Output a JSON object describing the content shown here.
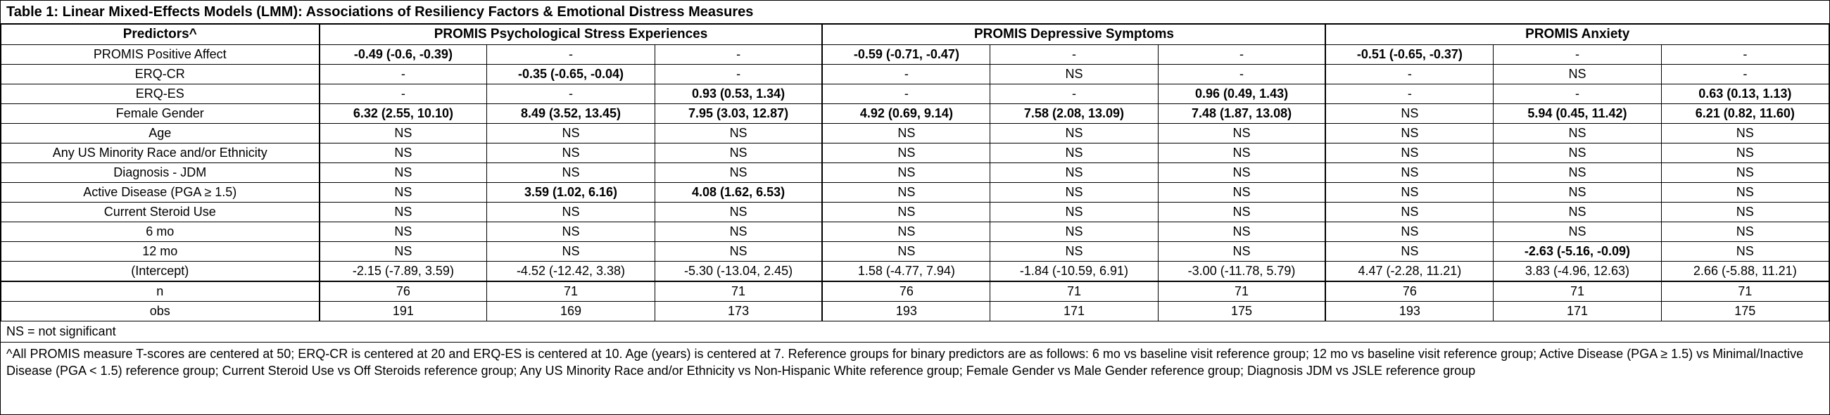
{
  "title": "Table 1: Linear Mixed-Effects Models (LMM): Associations of Resiliency Factors & Emotional Distress Measures",
  "table": {
    "predictor_header": "Predictors^",
    "groups": [
      "PROMIS Psychological Stress Experiences",
      "PROMIS Depressive Symptoms",
      "PROMIS Anxiety"
    ],
    "rows": [
      {
        "label": "PROMIS Positive Affect",
        "cells": [
          "-0.49 (-0.6, -0.39)",
          "-",
          "-",
          "-0.59 (-0.71, -0.47)",
          "-",
          "-",
          "-0.51 (-0.65, -0.37)",
          "-",
          "-"
        ],
        "bold": [
          0,
          3,
          6
        ]
      },
      {
        "label": "ERQ-CR",
        "cells": [
          "-",
          "-0.35 (-0.65, -0.04)",
          "-",
          "-",
          "NS",
          "-",
          "-",
          "NS",
          "-"
        ],
        "bold": [
          1
        ]
      },
      {
        "label": "ERQ-ES",
        "cells": [
          "-",
          "-",
          "0.93 (0.53, 1.34)",
          "-",
          "-",
          "0.96 (0.49, 1.43)",
          "-",
          "-",
          "0.63 (0.13, 1.13)"
        ],
        "bold": [
          2,
          5,
          8
        ]
      },
      {
        "label": "Female Gender",
        "cells": [
          "6.32 (2.55, 10.10)",
          "8.49 (3.52, 13.45)",
          "7.95 (3.03, 12.87)",
          "4.92 (0.69, 9.14)",
          "7.58 (2.08, 13.09)",
          "7.48 (1.87, 13.08)",
          "NS",
          "5.94 (0.45, 11.42)",
          "6.21 (0.82, 11.60)"
        ],
        "bold": [
          0,
          1,
          2,
          3,
          4,
          5,
          7,
          8
        ]
      },
      {
        "label": "Age",
        "cells": [
          "NS",
          "NS",
          "NS",
          "NS",
          "NS",
          "NS",
          "NS",
          "NS",
          "NS"
        ],
        "bold": []
      },
      {
        "label": "Any US Minority Race and/or Ethnicity",
        "cells": [
          "NS",
          "NS",
          "NS",
          "NS",
          "NS",
          "NS",
          "NS",
          "NS",
          "NS"
        ],
        "bold": []
      },
      {
        "label": "Diagnosis - JDM",
        "cells": [
          "NS",
          "NS",
          "NS",
          "NS",
          "NS",
          "NS",
          "NS",
          "NS",
          "NS"
        ],
        "bold": []
      },
      {
        "label": "Active Disease (PGA ≥ 1.5)",
        "cells": [
          "NS",
          "3.59 (1.02, 6.16)",
          "4.08 (1.62, 6.53)",
          "NS",
          "NS",
          "NS",
          "NS",
          "NS",
          "NS"
        ],
        "bold": [
          1,
          2
        ]
      },
      {
        "label": "Current Steroid Use",
        "cells": [
          "NS",
          "NS",
          "NS",
          "NS",
          "NS",
          "NS",
          "NS",
          "NS",
          "NS"
        ],
        "bold": []
      },
      {
        "label": "6 mo",
        "cells": [
          "NS",
          "NS",
          "NS",
          "NS",
          "NS",
          "NS",
          "NS",
          "NS",
          "NS"
        ],
        "bold": []
      },
      {
        "label": "12 mo",
        "cells": [
          "NS",
          "NS",
          "NS",
          "NS",
          "NS",
          "NS",
          "NS",
          "-2.63 (-5.16, -0.09)",
          "NS"
        ],
        "bold": [
          7
        ]
      },
      {
        "label": "(Intercept)",
        "cells": [
          "-2.15 (-7.89, 3.59)",
          "-4.52 (-12.42, 3.38)",
          "-5.30 (-13.04, 2.45)",
          "1.58 (-4.77, 7.94)",
          "-1.84 (-10.59, 6.91)",
          "-3.00 (-11.78, 5.79)",
          "4.47 (-2.28, 11.21)",
          "3.83 (-4.96, 12.63)",
          "2.66 (-5.88, 11.21)"
        ],
        "bold": []
      },
      {
        "label": "n",
        "section": "stats-start",
        "cells": [
          "76",
          "71",
          "71",
          "76",
          "71",
          "71",
          "76",
          "71",
          "71"
        ],
        "bold": []
      },
      {
        "label": "obs",
        "section": "stats",
        "cells": [
          "191",
          "169",
          "173",
          "193",
          "171",
          "175",
          "193",
          "171",
          "175"
        ],
        "bold": []
      }
    ]
  },
  "footnotes": {
    "ns": "NS = not significant",
    "caret": "^All PROMIS measure T-scores are centered at 50; ERQ-CR is centered at 20 and ERQ-ES is centered at 10. Age (years) is centered at 7. Reference groups for binary predictors are as follows: 6 mo vs baseline visit reference group; 12 mo vs baseline visit reference group; Active Disease (PGA ≥ 1.5) vs Minimal/Inactive Disease (PGA < 1.5) reference group; Current Steroid Use vs Off Steroids reference group; Any US Minority Race and/or Ethnicity vs Non-Hispanic White reference group; Female Gender vs Male Gender reference group; Diagnosis JDM vs JSLE reference group"
  }
}
